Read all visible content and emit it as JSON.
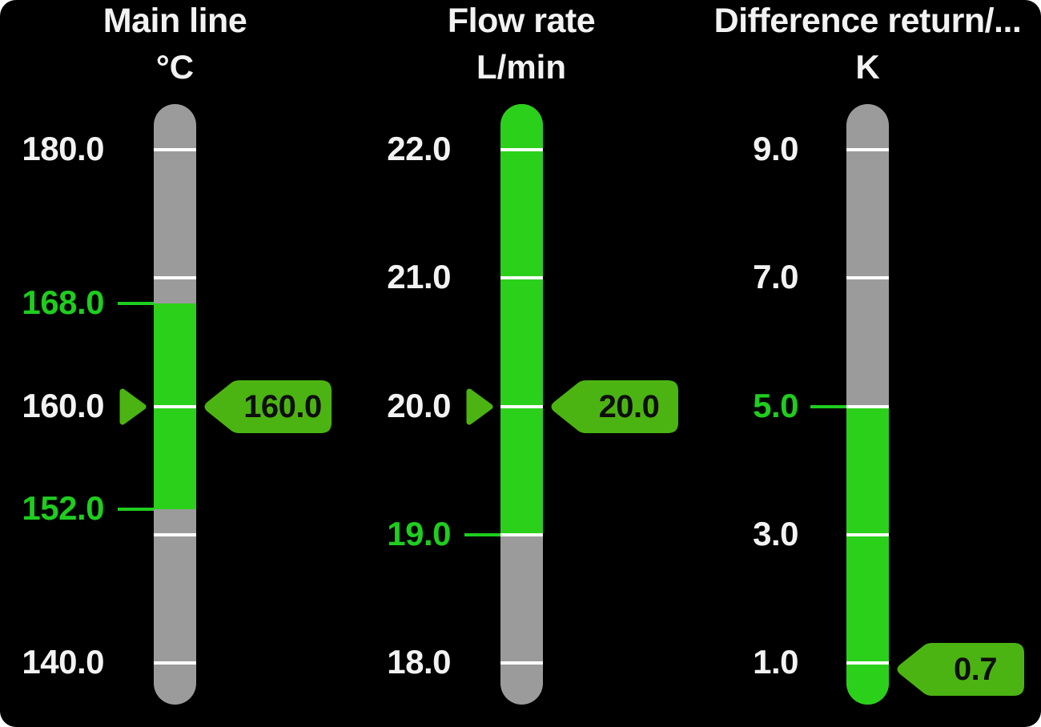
{
  "colors": {
    "background": "#000000",
    "panel_corner": "#ffffff",
    "bar_gray": "#9b9b9b",
    "zone_green": "#2bd01a",
    "limit_green": "#1fcd1f",
    "flag_green": "#4cb412",
    "tick_white": "#ffffff",
    "text_white": "#f2f2f2",
    "flag_text": "#0e0e0e"
  },
  "chart_data": [
    {
      "type": "bar",
      "variant": "vertical-gauge",
      "title": "Main line",
      "unit": "°C",
      "axis_range_labeled": [
        140.0,
        180.0
      ],
      "axis_ticks": [
        180.0,
        170.0,
        160.0,
        150.0,
        140.0
      ],
      "tick_labels": [
        {
          "text": "180.0",
          "value": 180.0,
          "style": "normal"
        },
        {
          "text": "168.0",
          "value": 168.0,
          "style": "limit"
        },
        {
          "text": "160.0",
          "value": 160.0,
          "style": "normal"
        },
        {
          "text": "152.0",
          "value": 152.0,
          "style": "limit"
        },
        {
          "text": "140.0",
          "value": 140.0,
          "style": "normal"
        }
      ],
      "limit_lines": [
        168.0,
        152.0
      ],
      "green_zone": {
        "from": 152.0,
        "to": 168.0
      },
      "setpoint_marker_value": 160.0,
      "value": 160.0,
      "value_flag_text": "160.0"
    },
    {
      "type": "bar",
      "variant": "vertical-gauge",
      "title": "Flow rate",
      "unit": "L/min",
      "axis_range_labeled": [
        18.0,
        22.0
      ],
      "axis_ticks": [
        22.0,
        21.0,
        20.0,
        19.0,
        18.0
      ],
      "tick_labels": [
        {
          "text": "22.0",
          "value": 22.0,
          "style": "normal"
        },
        {
          "text": "21.0",
          "value": 21.0,
          "style": "normal"
        },
        {
          "text": "20.0",
          "value": 20.0,
          "style": "normal"
        },
        {
          "text": "19.0",
          "value": 19.0,
          "style": "limit"
        },
        {
          "text": "18.0",
          "value": 18.0,
          "style": "normal"
        }
      ],
      "limit_lines": [
        19.0
      ],
      "green_zone": {
        "from": 19.0,
        "to": "max"
      },
      "setpoint_marker_value": 20.0,
      "value": 20.0,
      "value_flag_text": "20.0"
    },
    {
      "type": "bar",
      "variant": "vertical-gauge",
      "title": "Difference return/...",
      "unit": "K",
      "axis_range_labeled": [
        1.0,
        9.0
      ],
      "axis_ticks": [
        9.0,
        7.0,
        5.0,
        3.0,
        1.0
      ],
      "tick_labels": [
        {
          "text": "9.0",
          "value": 9.0,
          "style": "normal"
        },
        {
          "text": "7.0",
          "value": 7.0,
          "style": "normal"
        },
        {
          "text": "5.0",
          "value": 5.0,
          "style": "limit"
        },
        {
          "text": "3.0",
          "value": 3.0,
          "style": "normal"
        },
        {
          "text": "1.0",
          "value": 1.0,
          "style": "normal"
        }
      ],
      "limit_lines": [
        5.0
      ],
      "green_zone": {
        "from": "min",
        "to": 5.0
      },
      "setpoint_marker_value": null,
      "value": 0.7,
      "value_flag_text": "0.7"
    }
  ]
}
